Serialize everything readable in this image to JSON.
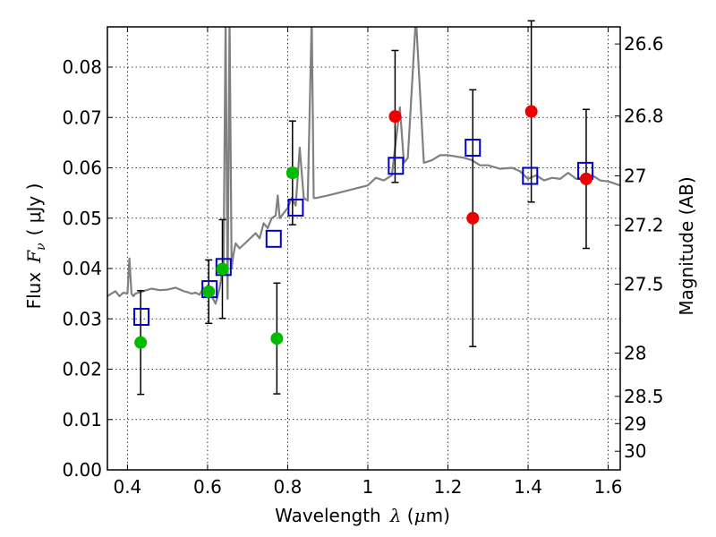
{
  "chart_data": {
    "type": "scatter",
    "title": "",
    "xlabel": {
      "prefix": "Wavelength",
      "symbol": "λ",
      "unit_open": " (",
      "unit_mu": "μ",
      "unit_rest": "m)"
    },
    "ylabel": {
      "prefix": "Flux",
      "symbol": "F",
      "subscript": "ν",
      "unit": "( μJy )"
    },
    "y2label": "Magnitude (AB)",
    "xlim": [
      0.35,
      1.63
    ],
    "ylim": [
      0.0,
      0.088
    ],
    "grid": true,
    "xticks": [
      0.4,
      0.6,
      0.8,
      1.0,
      1.2,
      1.4,
      1.6
    ],
    "xtick_labels": [
      "0.4",
      "0.6",
      "0.8",
      "1",
      "1.2",
      "1.4",
      "1.6"
    ],
    "yticks": [
      0.0,
      0.01,
      0.02,
      0.03,
      0.04,
      0.05,
      0.06,
      0.07,
      0.08
    ],
    "ytick_labels": [
      "0.00",
      "0.01",
      "0.02",
      "0.03",
      "0.04",
      "0.05",
      "0.06",
      "0.07",
      "0.08"
    ],
    "y2ticks": [
      {
        "label": "26.6",
        "flux": 0.0846
      },
      {
        "label": "26.8",
        "flux": 0.0703
      },
      {
        "label": "27",
        "flux": 0.0584
      },
      {
        "label": "27.2",
        "flux": 0.0486
      },
      {
        "label": "27.5",
        "flux": 0.0369
      },
      {
        "label": "28",
        "flux": 0.0232
      },
      {
        "label": "28.5",
        "flux": 0.0146
      },
      {
        "label": "29",
        "flux": 0.0092
      },
      {
        "label": "30",
        "flux": 0.0037
      }
    ],
    "colors": {
      "spectrum": "#808080",
      "green": "#00bb00",
      "red": "#ee0000",
      "model_box": "#0000cc",
      "errorbar": "#000000",
      "grid": "#000000"
    },
    "series": [
      {
        "kind": "spectrum",
        "x": [
          0.35,
          0.36,
          0.37,
          0.38,
          0.39,
          0.4,
          0.405,
          0.41,
          0.415,
          0.42,
          0.44,
          0.46,
          0.48,
          0.5,
          0.52,
          0.54,
          0.55,
          0.56,
          0.57,
          0.58,
          0.59,
          0.6,
          0.61,
          0.62,
          0.63,
          0.64,
          0.645,
          0.65,
          0.655,
          0.66,
          0.665,
          0.67,
          0.68,
          0.7,
          0.72,
          0.73,
          0.74,
          0.75,
          0.76,
          0.77,
          0.775,
          0.78,
          0.79,
          0.8,
          0.81,
          0.82,
          0.83,
          0.84,
          0.85,
          0.86,
          0.865,
          0.87,
          0.9,
          0.95,
          1.0,
          1.02,
          1.04,
          1.06,
          1.08,
          1.09,
          1.1,
          1.12,
          1.14,
          1.16,
          1.18,
          1.2,
          1.24,
          1.26,
          1.28,
          1.3,
          1.33,
          1.36,
          1.38,
          1.4,
          1.42,
          1.44,
          1.46,
          1.48,
          1.5,
          1.52,
          1.54,
          1.56,
          1.58,
          1.6,
          1.63
        ],
        "y": [
          0.0345,
          0.035,
          0.0355,
          0.0345,
          0.0352,
          0.035,
          0.042,
          0.035,
          0.0345,
          0.035,
          0.0355,
          0.036,
          0.0357,
          0.0358,
          0.0362,
          0.0355,
          0.0353,
          0.035,
          0.0352,
          0.0348,
          0.0362,
          0.0355,
          0.0345,
          0.033,
          0.036,
          0.041,
          0.09,
          0.034,
          0.09,
          0.04,
          0.043,
          0.045,
          0.044,
          0.0455,
          0.047,
          0.046,
          0.049,
          0.048,
          0.05,
          0.0505,
          0.0545,
          0.05,
          0.051,
          0.052,
          0.054,
          0.0525,
          0.064,
          0.054,
          0.0535,
          0.09,
          0.054,
          0.054,
          0.0545,
          0.0555,
          0.0565,
          0.058,
          0.0575,
          0.0585,
          0.072,
          0.061,
          0.062,
          0.09,
          0.061,
          0.0615,
          0.0625,
          0.0625,
          0.062,
          0.0615,
          0.0605,
          0.0605,
          0.0598,
          0.06,
          0.0593,
          0.0578,
          0.0585,
          0.0575,
          0.058,
          0.0578,
          0.059,
          0.0578,
          0.0582,
          0.0585,
          0.0575,
          0.0573,
          0.0565
        ]
      },
      {
        "kind": "green_points",
        "x": [
          0.433,
          0.603,
          0.637,
          0.773,
          0.812
        ],
        "y": [
          0.0253,
          0.0354,
          0.0399,
          0.0261,
          0.059
        ],
        "err": [
          0.0103,
          0.0063,
          0.0098,
          0.011,
          0.0103
        ]
      },
      {
        "kind": "red_points",
        "x": [
          1.068,
          1.262,
          1.408,
          1.545
        ],
        "y": [
          0.0702,
          0.05,
          0.0712,
          0.0578
        ],
        "err": [
          0.0131,
          0.0255,
          0.018,
          0.0138
        ]
      },
      {
        "kind": "model_boxes",
        "x": [
          0.435,
          0.605,
          0.64,
          0.765,
          0.82,
          1.07,
          1.262,
          1.405,
          1.543
        ],
        "y": [
          0.0304,
          0.0359,
          0.0403,
          0.0459,
          0.0521,
          0.0604,
          0.064,
          0.0584,
          0.0594
        ]
      }
    ]
  }
}
